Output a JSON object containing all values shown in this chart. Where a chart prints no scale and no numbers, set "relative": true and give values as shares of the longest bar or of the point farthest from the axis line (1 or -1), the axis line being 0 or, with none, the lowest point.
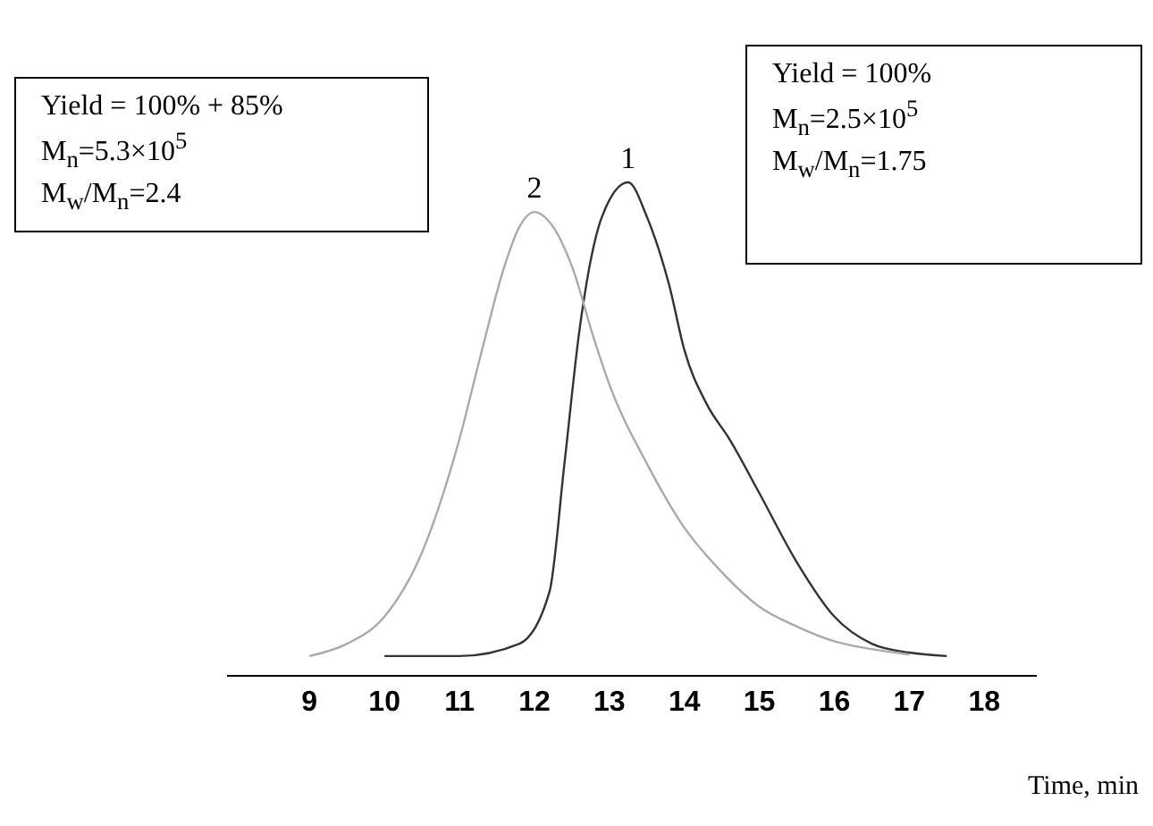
{
  "chart_data": {
    "type": "line",
    "relative": true,
    "xlabel": "Time, min",
    "xlim": [
      7.9,
      18.7
    ],
    "xticks": [
      9,
      10,
      11,
      12,
      13,
      14,
      15,
      16,
      17,
      18
    ],
    "grid": false,
    "legend": false,
    "marker": "none",
    "line_style": "solid",
    "annotations": [
      "Yield = 100% + 85%\nM$_{n}$=5.3×10$^{5}$\nM$_{w}$/M$_{n}$=2.4",
      "Yield = 100%\nM$_{n}$=2.5×10$^{5}$\nM$_{w}$/M$_{n}$=1.75"
    ],
    "series": [
      {
        "name": "1",
        "color": "#333333",
        "x": [
          10,
          11,
          11.8,
          12.2,
          12.4,
          12.6,
          12.9,
          13.25,
          13.5,
          13.8,
          14,
          14.3,
          14.6,
          15,
          15.5,
          16,
          16.5,
          17,
          17.5
        ],
        "values": [
          0.04,
          0.04,
          0.065,
          0.17,
          0.43,
          0.7,
          0.93,
          1,
          0.93,
          0.79,
          0.66,
          0.55,
          0.48,
          0.37,
          0.23,
          0.12,
          0.065,
          0.047,
          0.04
        ]
      },
      {
        "name": "2",
        "color": "#aaaaaa",
        "x": [
          9,
          9.5,
          10,
          10.5,
          11,
          11.3,
          11.6,
          11.8,
          12,
          12.2,
          12.5,
          12.8,
          13,
          13.5,
          14,
          14.5,
          15,
          15.5,
          16,
          16.5,
          17
        ],
        "values": [
          0.04,
          0.065,
          0.12,
          0.25,
          0.48,
          0.66,
          0.83,
          0.91,
          0.94,
          0.92,
          0.83,
          0.68,
          0.59,
          0.43,
          0.3,
          0.21,
          0.14,
          0.1,
          0.07,
          0.054,
          0.043
        ]
      }
    ]
  }
}
